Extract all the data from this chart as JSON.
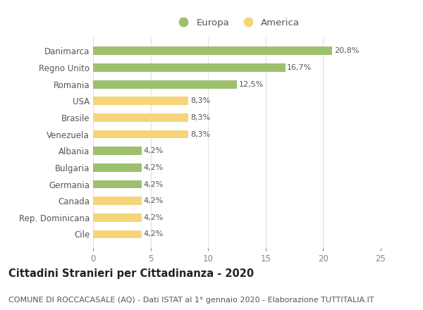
{
  "categories": [
    "Danimarca",
    "Regno Unito",
    "Romania",
    "USA",
    "Brasile",
    "Venezuela",
    "Albania",
    "Bulgaria",
    "Germania",
    "Canada",
    "Rep. Dominicana",
    "Cile"
  ],
  "values": [
    20.8,
    16.7,
    12.5,
    8.3,
    8.3,
    8.3,
    4.2,
    4.2,
    4.2,
    4.2,
    4.2,
    4.2
  ],
  "labels": [
    "20,8%",
    "16,7%",
    "12,5%",
    "8,3%",
    "8,3%",
    "8,3%",
    "4,2%",
    "4,2%",
    "4,2%",
    "4,2%",
    "4,2%",
    "4,2%"
  ],
  "colors": [
    "#9dc06e",
    "#9dc06e",
    "#9dc06e",
    "#f5d47a",
    "#f5d47a",
    "#f5d47a",
    "#9dc06e",
    "#9dc06e",
    "#9dc06e",
    "#f5d47a",
    "#f5d47a",
    "#f5d47a"
  ],
  "europa_color": "#9dc06e",
  "america_color": "#f5d47a",
  "legend_labels": [
    "Europa",
    "America"
  ],
  "xlim": [
    0,
    25
  ],
  "xticks": [
    0,
    5,
    10,
    15,
    20,
    25
  ],
  "title": "Cittadini Stranieri per Cittadinanza - 2020",
  "subtitle": "COMUNE DI ROCCACASALE (AQ) - Dati ISTAT al 1° gennaio 2020 - Elaborazione TUTTITALIA.IT",
  "background_color": "#ffffff",
  "bar_height": 0.5,
  "title_fontsize": 10.5,
  "subtitle_fontsize": 8,
  "label_fontsize": 8,
  "tick_fontsize": 8.5,
  "legend_fontsize": 9.5,
  "text_color": "#555555",
  "grid_color": "#e0e0e0"
}
